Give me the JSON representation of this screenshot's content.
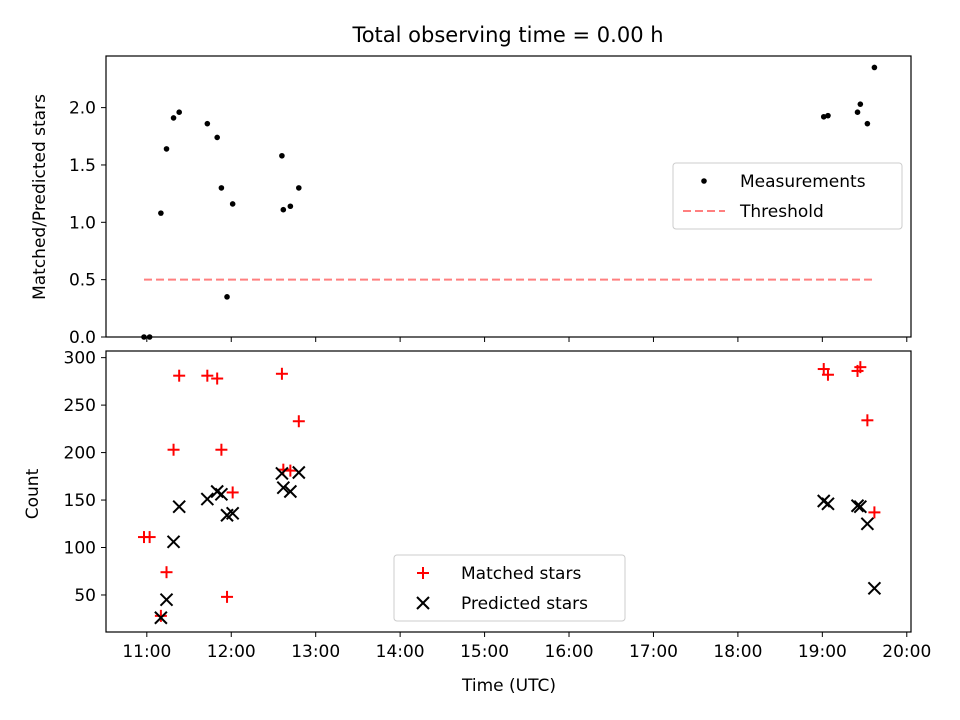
{
  "chart_data": [
    {
      "type": "scatter",
      "title": "Total observing time = 0.00 h",
      "xlabel": "",
      "ylabel": "Matched/Predicted stars",
      "xlim": [
        "10:31",
        "20:03"
      ],
      "ylim": [
        0,
        2.45
      ],
      "yticks": [
        0.0,
        0.5,
        1.0,
        1.5,
        2.0
      ],
      "ytick_labels": [
        "0.0",
        "0.5",
        "1.0",
        "1.5",
        "2.0"
      ],
      "xticks": [
        "11:00",
        "12:00",
        "13:00",
        "14:00",
        "15:00",
        "16:00",
        "17:00",
        "18:00",
        "19:00",
        "20:00"
      ],
      "grid": false,
      "legend_position": "center-right",
      "series": [
        {
          "name": "Measurements",
          "kind": "scatter",
          "color": "#000000",
          "points": [
            {
              "x": "10:58",
              "y": 0.0
            },
            {
              "x": "11:02",
              "y": 0.0
            },
            {
              "x": "11:10",
              "y": 1.08
            },
            {
              "x": "11:14",
              "y": 1.64
            },
            {
              "x": "11:19",
              "y": 1.91
            },
            {
              "x": "11:23",
              "y": 1.96
            },
            {
              "x": "11:43",
              "y": 1.86
            },
            {
              "x": "11:50",
              "y": 1.74
            },
            {
              "x": "11:53",
              "y": 1.3
            },
            {
              "x": "11:57",
              "y": 0.35
            },
            {
              "x": "12:01",
              "y": 1.16
            },
            {
              "x": "12:36",
              "y": 1.58
            },
            {
              "x": "12:37",
              "y": 1.11
            },
            {
              "x": "12:42",
              "y": 1.14
            },
            {
              "x": "12:48",
              "y": 1.3
            },
            {
              "x": "19:01",
              "y": 1.92
            },
            {
              "x": "19:04",
              "y": 1.93
            },
            {
              "x": "19:25",
              "y": 1.96
            },
            {
              "x": "19:27",
              "y": 2.03
            },
            {
              "x": "19:32",
              "y": 1.86
            },
            {
              "x": "19:37",
              "y": 2.35
            }
          ]
        },
        {
          "name": "Threshold",
          "kind": "line",
          "style": "dashed",
          "color": "#ff7f7f",
          "points": [
            {
              "x": "10:58",
              "y": 0.5
            },
            {
              "x": "19:37",
              "y": 0.5
            }
          ]
        }
      ]
    },
    {
      "type": "scatter",
      "title": "",
      "xlabel": "Time (UTC)",
      "ylabel": "Count",
      "xlim": [
        "10:31",
        "20:03"
      ],
      "ylim": [
        11,
        307
      ],
      "yticks": [
        50,
        100,
        150,
        200,
        250,
        300
      ],
      "ytick_labels": [
        "50",
        "100",
        "150",
        "200",
        "250",
        "300"
      ],
      "xticks": [
        "11:00",
        "12:00",
        "13:00",
        "14:00",
        "15:00",
        "16:00",
        "17:00",
        "18:00",
        "19:00",
        "20:00"
      ],
      "xtick_labels": [
        "11:00",
        "12:00",
        "13:00",
        "14:00",
        "15:00",
        "16:00",
        "17:00",
        "18:00",
        "19:00",
        "20:00"
      ],
      "grid": false,
      "legend_position": "bottom-center",
      "series": [
        {
          "name": "Matched stars",
          "marker": "plus",
          "color": "#ff0000",
          "points": [
            {
              "x": "10:58",
              "y": 111
            },
            {
              "x": "11:02",
              "y": 111
            },
            {
              "x": "11:10",
              "y": 28
            },
            {
              "x": "11:14",
              "y": 74
            },
            {
              "x": "11:19",
              "y": 203
            },
            {
              "x": "11:23",
              "y": 281
            },
            {
              "x": "11:43",
              "y": 281
            },
            {
              "x": "11:50",
              "y": 278
            },
            {
              "x": "11:53",
              "y": 203
            },
            {
              "x": "11:57",
              "y": 48
            },
            {
              "x": "12:01",
              "y": 158
            },
            {
              "x": "12:36",
              "y": 283
            },
            {
              "x": "12:37",
              "y": 182
            },
            {
              "x": "12:42",
              "y": 181
            },
            {
              "x": "12:48",
              "y": 233
            },
            {
              "x": "19:01",
              "y": 288
            },
            {
              "x": "19:04",
              "y": 282
            },
            {
              "x": "19:25",
              "y": 286
            },
            {
              "x": "19:27",
              "y": 290
            },
            {
              "x": "19:32",
              "y": 234
            },
            {
              "x": "19:37",
              "y": 137
            }
          ]
        },
        {
          "name": "Predicted stars",
          "marker": "x",
          "color": "#000000",
          "points": [
            {
              "x": "11:10",
              "y": 26
            },
            {
              "x": "11:14",
              "y": 45
            },
            {
              "x": "11:19",
              "y": 106
            },
            {
              "x": "11:23",
              "y": 143
            },
            {
              "x": "11:43",
              "y": 151
            },
            {
              "x": "11:50",
              "y": 159
            },
            {
              "x": "11:53",
              "y": 156
            },
            {
              "x": "11:57",
              "y": 134
            },
            {
              "x": "12:01",
              "y": 136
            },
            {
              "x": "12:36",
              "y": 178
            },
            {
              "x": "12:37",
              "y": 163
            },
            {
              "x": "12:42",
              "y": 159
            },
            {
              "x": "12:48",
              "y": 179
            },
            {
              "x": "19:01",
              "y": 149
            },
            {
              "x": "19:04",
              "y": 146
            },
            {
              "x": "19:25",
              "y": 144
            },
            {
              "x": "19:27",
              "y": 143
            },
            {
              "x": "19:32",
              "y": 125
            },
            {
              "x": "19:37",
              "y": 57
            }
          ]
        }
      ]
    }
  ]
}
